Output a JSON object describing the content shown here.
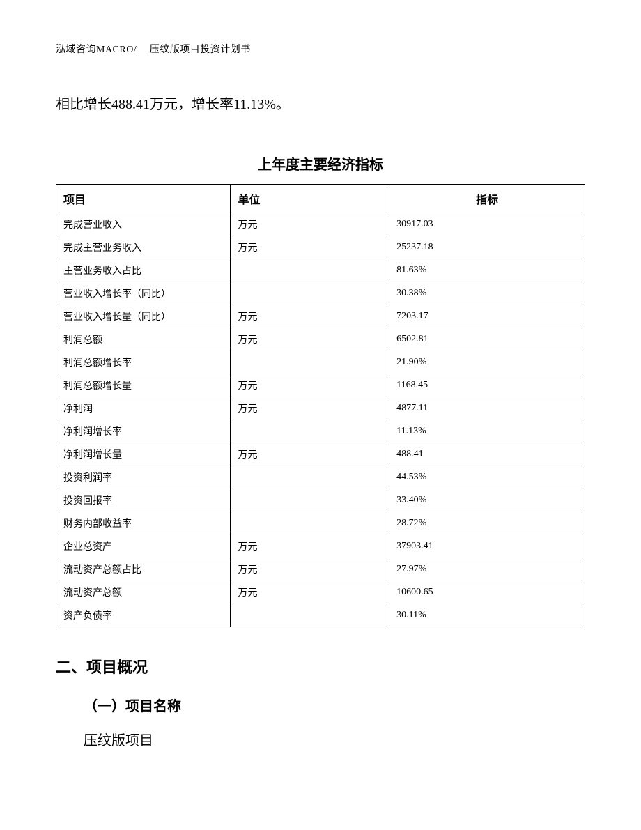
{
  "header": "泓域咨询MACRO/　 压纹版项目投资计划书",
  "body_text": "相比增长488.41万元，增长率11.13%。",
  "table": {
    "title": "上年度主要经济指标",
    "columns": [
      "项目",
      "单位",
      "指标"
    ],
    "rows": [
      [
        "完成营业收入",
        "万元",
        "30917.03"
      ],
      [
        "完成主营业务收入",
        "万元",
        "25237.18"
      ],
      [
        "主营业务收入占比",
        "",
        "81.63%"
      ],
      [
        "营业收入增长率（同比）",
        "",
        "30.38%"
      ],
      [
        "营业收入增长量（同比）",
        "万元",
        "7203.17"
      ],
      [
        "利润总额",
        "万元",
        "6502.81"
      ],
      [
        "利润总额增长率",
        "",
        "21.90%"
      ],
      [
        "利润总额增长量",
        "万元",
        "1168.45"
      ],
      [
        "净利润",
        "万元",
        "4877.11"
      ],
      [
        "净利润增长率",
        "",
        "11.13%"
      ],
      [
        "净利润增长量",
        "万元",
        "488.41"
      ],
      [
        "投资利润率",
        "",
        "44.53%"
      ],
      [
        "投资回报率",
        "",
        "33.40%"
      ],
      [
        "财务内部收益率",
        "",
        "28.72%"
      ],
      [
        "企业总资产",
        "万元",
        "37903.41"
      ],
      [
        "流动资产总额占比",
        "万元",
        "27.97%"
      ],
      [
        "流动资产总额",
        "万元",
        "10600.65"
      ],
      [
        "资产负债率",
        "",
        "30.11%"
      ]
    ]
  },
  "section2": {
    "title": "二、项目概况",
    "subsection_title": "（一）项目名称",
    "subsection_content": "压纹版项目"
  }
}
